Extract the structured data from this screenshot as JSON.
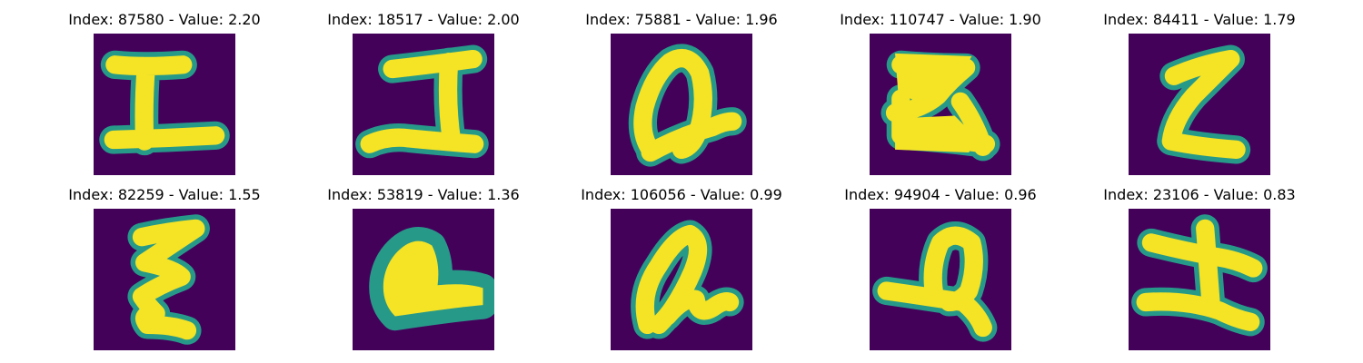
{
  "colors": {
    "background": "#44015a",
    "halo": "#25aa8e",
    "stroke": "#f5e325",
    "text": "#000000"
  },
  "panels": [
    {
      "title": "Index: 87580 - Value: 2.20"
    },
    {
      "title": "Index: 18517 - Value: 2.00"
    },
    {
      "title": "Index: 75881 - Value: 1.96"
    },
    {
      "title": "Index: 110747 - Value: 1.90"
    },
    {
      "title": "Index: 84411 - Value: 1.79"
    },
    {
      "title": "Index: 82259 - Value: 1.55"
    },
    {
      "title": "Index: 53819 - Value: 1.36"
    },
    {
      "title": "Index: 106056 - Value: 0.99"
    },
    {
      "title": "Index: 94904 - Value: 0.96"
    },
    {
      "title": "Index: 23106 - Value: 0.83"
    }
  ]
}
